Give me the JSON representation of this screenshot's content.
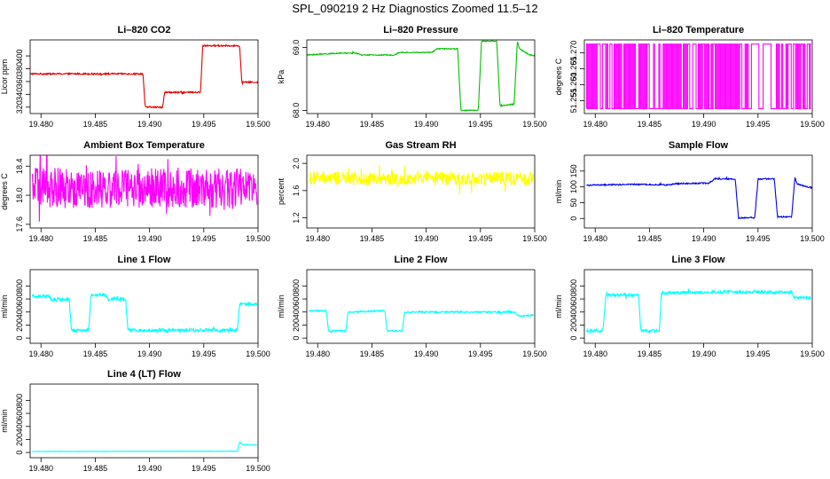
{
  "figure": {
    "title": "SPL_090219  2 Hz Diagnostics Zoomed 11.5–12"
  },
  "chart_data": [
    {
      "type": "line",
      "title": "Li–820 CO2",
      "ylabel": "Licor ppm",
      "color": "#e00000",
      "xlim": [
        19.479,
        19.5
      ],
      "xticks": [
        19.48,
        19.485,
        19.49,
        19.495,
        19.5
      ],
      "xtick_labels": [
        "19.480",
        "19.485",
        "19.490",
        "19.495",
        "19.500"
      ],
      "ylim": [
        310,
        425
      ],
      "yticks": [
        320,
        340,
        360,
        380,
        400
      ],
      "ytick_labels": [
        "320",
        "340",
        "360",
        "380",
        "400"
      ],
      "noise": 1.2,
      "points": [
        [
          19.479,
          372
        ],
        [
          19.4894,
          372
        ],
        [
          19.4896,
          320
        ],
        [
          19.4912,
          320
        ],
        [
          19.4914,
          343
        ],
        [
          19.4947,
          343
        ],
        [
          19.4949,
          416
        ],
        [
          19.4983,
          416
        ],
        [
          19.4985,
          359
        ],
        [
          19.5,
          359
        ]
      ]
    },
    {
      "type": "line",
      "title": "Li–820 Pressure",
      "ylabel": "kPa",
      "color": "#00c000",
      "xlim": [
        19.479,
        19.5
      ],
      "xticks": [
        19.48,
        19.485,
        19.49,
        19.495,
        19.5
      ],
      "xtick_labels": [
        "19.480",
        "19.485",
        "19.490",
        "19.495",
        "19.500"
      ],
      "ylim": [
        67.95,
        69.12
      ],
      "yticks": [
        68.0,
        69.0
      ],
      "ytick_labels": [
        "68.0",
        "69.0"
      ],
      "noise": 0.008,
      "points": [
        [
          19.479,
          68.88
        ],
        [
          19.481,
          68.9
        ],
        [
          19.482,
          68.91
        ],
        [
          19.4836,
          68.91
        ],
        [
          19.484,
          68.88
        ],
        [
          19.487,
          68.88
        ],
        [
          19.4875,
          68.92
        ],
        [
          19.4905,
          68.92
        ],
        [
          19.491,
          68.98
        ],
        [
          19.4929,
          68.98
        ],
        [
          19.4932,
          68.0
        ],
        [
          19.4948,
          68.0
        ],
        [
          19.4951,
          69.1
        ],
        [
          19.4965,
          69.1
        ],
        [
          19.4968,
          68.07
        ],
        [
          19.4981,
          68.1
        ],
        [
          19.4984,
          69.1
        ],
        [
          19.4986,
          68.98
        ],
        [
          19.4995,
          68.88
        ],
        [
          19.5,
          68.87
        ]
      ]
    },
    {
      "type": "line",
      "title": "Li–820 Temperature",
      "ylabel": "degrees C",
      "color": "#ff00ff",
      "style": "toggle",
      "xlim": [
        19.479,
        19.5
      ],
      "xticks": [
        19.48,
        19.485,
        19.49,
        19.495,
        19.5
      ],
      "xtick_labels": [
        "19.480",
        "19.485",
        "19.490",
        "19.495",
        "19.500"
      ],
      "ylim": [
        51.251,
        51.274
      ],
      "yticks": [
        51.255,
        51.26,
        51.265,
        51.27
      ],
      "ytick_labels": [
        "51.255",
        "51.260",
        "51.265",
        "51.270"
      ],
      "low": 51.2525,
      "high": 51.2727,
      "segments": [
        [
          19.4792,
          19.4942,
          0.75
        ],
        [
          19.4942,
          19.4962,
          0.15
        ],
        [
          19.4962,
          19.4999,
          0.6
        ]
      ]
    },
    {
      "type": "line",
      "title": "Ambient Box Temperature",
      "ylabel": "degrees C",
      "color": "#ff00ff",
      "xlim": [
        19.479,
        19.5
      ],
      "xticks": [
        19.48,
        19.485,
        19.49,
        19.495,
        19.5
      ],
      "xtick_labels": [
        "19.480",
        "19.485",
        "19.490",
        "19.495",
        "19.500"
      ],
      "ylim": [
        17.55,
        18.55
      ],
      "yticks": [
        17.6,
        18.0,
        18.4
      ],
      "ytick_labels": [
        "17.6",
        "18.0",
        "18.4"
      ],
      "noise": 0.28,
      "points": [
        [
          19.4792,
          18.1
        ],
        [
          19.4999,
          18.1
        ]
      ]
    },
    {
      "type": "line",
      "title": "Gas Stream RH",
      "ylabel": "percent",
      "color": "#ffff00",
      "xlim": [
        19.479,
        19.5
      ],
      "xticks": [
        19.48,
        19.485,
        19.49,
        19.495,
        19.5
      ],
      "xtick_labels": [
        "19.480",
        "19.485",
        "19.490",
        "19.495",
        "19.500"
      ],
      "ylim": [
        1.05,
        2.12
      ],
      "yticks": [
        1.2,
        1.6,
        2.0
      ],
      "ytick_labels": [
        "1.2",
        "1.6",
        "2.0"
      ],
      "noise": 0.1,
      "points": [
        [
          19.4792,
          1.78
        ],
        [
          19.4999,
          1.78
        ]
      ]
    },
    {
      "type": "line",
      "title": "Sample Flow",
      "ylabel": "ml/min",
      "color": "#0000ee",
      "xlim": [
        19.479,
        19.5
      ],
      "xticks": [
        19.48,
        19.485,
        19.49,
        19.495,
        19.5
      ],
      "xtick_labels": [
        "19.480",
        "19.485",
        "19.490",
        "19.495",
        "19.500"
      ],
      "ylim": [
        -30,
        200
      ],
      "yticks": [
        0,
        50,
        100,
        150
      ],
      "ytick_labels": [
        "0",
        "50",
        "100",
        "150"
      ],
      "noise": 2,
      "points": [
        [
          19.4792,
          105
        ],
        [
          19.4835,
          108
        ],
        [
          19.4865,
          106
        ],
        [
          19.4875,
          110
        ],
        [
          19.4905,
          112
        ],
        [
          19.491,
          125
        ],
        [
          19.4929,
          125
        ],
        [
          19.4932,
          2
        ],
        [
          19.4947,
          2
        ],
        [
          19.495,
          125
        ],
        [
          19.4965,
          125
        ],
        [
          19.4968,
          5
        ],
        [
          19.4981,
          5
        ],
        [
          19.4984,
          130
        ],
        [
          19.4986,
          110
        ],
        [
          19.4995,
          100
        ],
        [
          19.5,
          97
        ]
      ]
    },
    {
      "type": "line",
      "title": "Line 1 Flow",
      "ylabel": "ml/min",
      "color": "#00ffff",
      "xlim": [
        19.479,
        19.5
      ],
      "xticks": [
        19.48,
        19.485,
        19.49,
        19.495,
        19.5
      ],
      "xtick_labels": [
        "19.480",
        "19.485",
        "19.490",
        "19.495",
        "19.500"
      ],
      "ylim": [
        -80,
        1050
      ],
      "yticks": [
        0,
        200,
        400,
        600,
        800
      ],
      "ytick_labels": [
        "0",
        "200",
        "400",
        "600",
        "800"
      ],
      "noise": 25,
      "points": [
        [
          19.4792,
          640
        ],
        [
          19.4808,
          640
        ],
        [
          19.481,
          590
        ],
        [
          19.4826,
          590
        ],
        [
          19.4828,
          120
        ],
        [
          19.4844,
          120
        ],
        [
          19.4846,
          660
        ],
        [
          19.486,
          660
        ],
        [
          19.4862,
          600
        ],
        [
          19.4878,
          600
        ],
        [
          19.488,
          120
        ],
        [
          19.4981,
          120
        ],
        [
          19.4983,
          520
        ],
        [
          19.4999,
          520
        ]
      ]
    },
    {
      "type": "line",
      "title": "Line 2 Flow",
      "ylabel": "ml/min",
      "color": "#00ffff",
      "xlim": [
        19.479,
        19.5
      ],
      "xticks": [
        19.48,
        19.485,
        19.49,
        19.495,
        19.5
      ],
      "xtick_labels": [
        "19.480",
        "19.485",
        "19.490",
        "19.495",
        "19.500"
      ],
      "ylim": [
        -80,
        1050
      ],
      "yticks": [
        0,
        200,
        400,
        600,
        800
      ],
      "ytick_labels": [
        "0",
        "200",
        "400",
        "600",
        "800"
      ],
      "noise": 12,
      "points": [
        [
          19.4792,
          420
        ],
        [
          19.4808,
          420
        ],
        [
          19.481,
          110
        ],
        [
          19.4826,
          110
        ],
        [
          19.4828,
          400
        ],
        [
          19.4862,
          420
        ],
        [
          19.4864,
          110
        ],
        [
          19.4878,
          110
        ],
        [
          19.488,
          400
        ],
        [
          19.4982,
          400
        ],
        [
          19.4984,
          340
        ],
        [
          19.4999,
          350
        ]
      ]
    },
    {
      "type": "line",
      "title": "Line 3 Flow",
      "ylabel": "ml/min",
      "color": "#00ffff",
      "xlim": [
        19.479,
        19.5
      ],
      "xticks": [
        19.48,
        19.485,
        19.49,
        19.495,
        19.5
      ],
      "xtick_labels": [
        "19.480",
        "19.485",
        "19.490",
        "19.495",
        "19.500"
      ],
      "ylim": [
        -80,
        1050
      ],
      "yticks": [
        0,
        200,
        400,
        600,
        800
      ],
      "ytick_labels": [
        "0",
        "200",
        "400",
        "600",
        "800"
      ],
      "noise": 22,
      "points": [
        [
          19.4792,
          110
        ],
        [
          19.4807,
          110
        ],
        [
          19.481,
          660
        ],
        [
          19.484,
          660
        ],
        [
          19.4842,
          110
        ],
        [
          19.4859,
          110
        ],
        [
          19.4861,
          690
        ],
        [
          19.492,
          710
        ],
        [
          19.4981,
          700
        ],
        [
          19.4983,
          620
        ],
        [
          19.4999,
          620
        ]
      ]
    },
    {
      "type": "line",
      "title": "Line 4 (LT) Flow",
      "ylabel": "ml/min",
      "color": "#00ffff",
      "xlim": [
        19.479,
        19.5
      ],
      "xticks": [
        19.48,
        19.485,
        19.49,
        19.495,
        19.5
      ],
      "xtick_labels": [
        "19.480",
        "19.485",
        "19.490",
        "19.495",
        "19.500"
      ],
      "ylim": [
        -80,
        1050
      ],
      "yticks": [
        0,
        200,
        400,
        600,
        800
      ],
      "ytick_labels": [
        "0",
        "200",
        "400",
        "600",
        "800"
      ],
      "noise": 3,
      "points": [
        [
          19.4792,
          15
        ],
        [
          19.4981,
          20
        ],
        [
          19.4983,
          160
        ],
        [
          19.4986,
          120
        ],
        [
          19.4999,
          115
        ]
      ]
    }
  ]
}
